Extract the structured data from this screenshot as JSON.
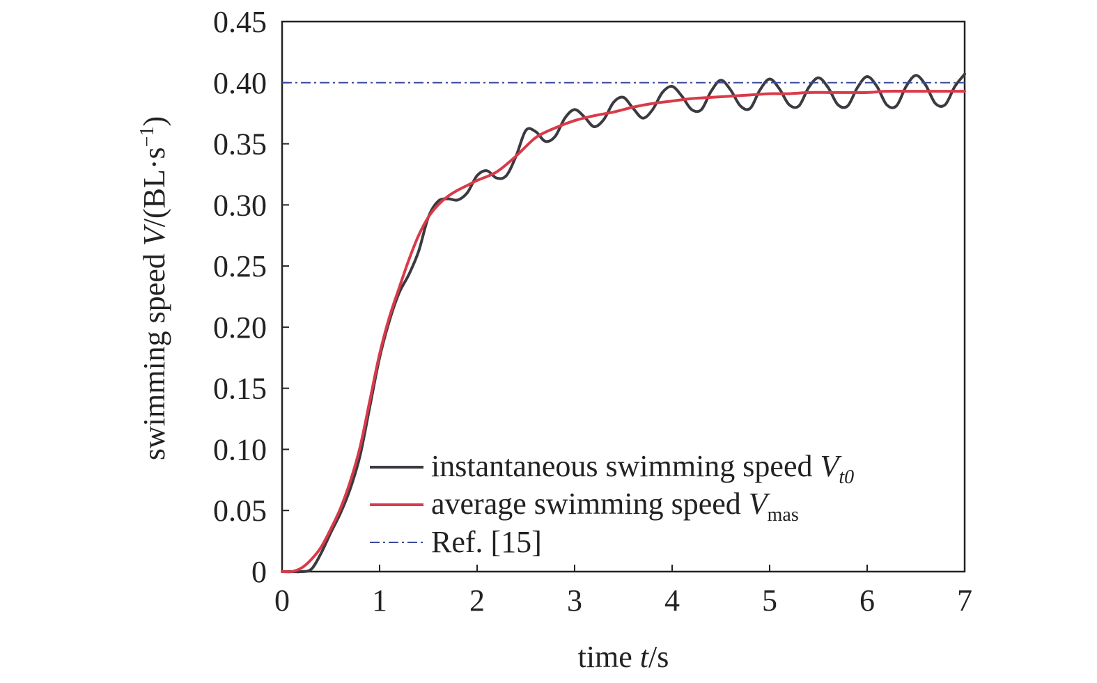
{
  "chart_data": {
    "type": "line",
    "xlabel": {
      "pre": "time ",
      "var": "t",
      "post": "/s"
    },
    "ylabel": {
      "pre": "swimming speed ",
      "var": "V",
      "post": "/(BL·s",
      "sup": "−1",
      "close": ")"
    },
    "xlim": [
      0,
      7
    ],
    "ylim": [
      0,
      0.45
    ],
    "xticks": [
      0,
      1,
      2,
      3,
      4,
      5,
      6,
      7
    ],
    "xtick_labels": [
      "0",
      "1",
      "2",
      "3",
      "4",
      "5",
      "6",
      "7"
    ],
    "yticks": [
      0,
      0.05,
      0.1,
      0.15,
      0.2,
      0.25,
      0.3,
      0.35,
      0.4,
      0.45
    ],
    "ytick_labels": [
      "0",
      "0.05",
      "0.10",
      "0.15",
      "0.20",
      "0.25",
      "0.30",
      "0.35",
      "0.40",
      "0.45"
    ],
    "grid": false,
    "legend_position": "bottom-right",
    "series": [
      {
        "legend_pre": "instantaneous swimming speed ",
        "legend_var": "V",
        "legend_sub": "t0",
        "color": "#3a3a40",
        "style": "solid",
        "x": [
          0.0,
          0.1,
          0.2,
          0.3,
          0.4,
          0.5,
          0.6,
          0.7,
          0.8,
          0.9,
          1.0,
          1.1,
          1.2,
          1.3,
          1.4,
          1.5,
          1.6,
          1.7,
          1.8,
          1.9,
          2.0,
          2.1,
          2.2,
          2.3,
          2.4,
          2.5,
          2.6,
          2.7,
          2.8,
          2.9,
          3.0,
          3.1,
          3.2,
          3.3,
          3.4,
          3.5,
          3.6,
          3.7,
          3.8,
          3.9,
          4.0,
          4.1,
          4.2,
          4.3,
          4.4,
          4.5,
          4.6,
          4.7,
          4.8,
          4.9,
          5.0,
          5.1,
          5.2,
          5.3,
          5.4,
          5.5,
          5.6,
          5.7,
          5.8,
          5.9,
          6.0,
          6.1,
          6.2,
          6.3,
          6.4,
          6.5,
          6.6,
          6.7,
          6.8,
          6.9,
          7.0
        ],
        "y": [
          0.0,
          0.0,
          0.0,
          0.002,
          0.015,
          0.032,
          0.048,
          0.068,
          0.095,
          0.135,
          0.175,
          0.205,
          0.228,
          0.243,
          0.262,
          0.29,
          0.303,
          0.305,
          0.304,
          0.31,
          0.324,
          0.328,
          0.322,
          0.324,
          0.34,
          0.361,
          0.36,
          0.352,
          0.356,
          0.371,
          0.378,
          0.372,
          0.364,
          0.37,
          0.384,
          0.388,
          0.379,
          0.371,
          0.378,
          0.392,
          0.397,
          0.389,
          0.378,
          0.378,
          0.393,
          0.402,
          0.394,
          0.381,
          0.379,
          0.394,
          0.403,
          0.395,
          0.382,
          0.381,
          0.396,
          0.404,
          0.396,
          0.382,
          0.381,
          0.396,
          0.405,
          0.397,
          0.382,
          0.381,
          0.397,
          0.406,
          0.398,
          0.383,
          0.382,
          0.397,
          0.407
        ]
      },
      {
        "legend_pre": "average swimming speed ",
        "legend_var": "V",
        "legend_sub": "mas",
        "color": "#d93a4a",
        "style": "solid",
        "x": [
          0.0,
          0.1,
          0.2,
          0.3,
          0.4,
          0.5,
          0.6,
          0.7,
          0.8,
          0.9,
          1.0,
          1.1,
          1.2,
          1.3,
          1.4,
          1.5,
          1.6,
          1.7,
          1.8,
          1.9,
          2.0,
          2.2,
          2.4,
          2.6,
          2.8,
          3.0,
          3.2,
          3.4,
          3.6,
          3.8,
          4.0,
          4.2,
          4.4,
          4.6,
          4.8,
          5.0,
          5.2,
          5.4,
          5.6,
          5.8,
          6.0,
          6.2,
          6.4,
          6.6,
          6.8,
          7.0
        ],
        "y": [
          0.0,
          0.0,
          0.003,
          0.01,
          0.02,
          0.035,
          0.052,
          0.074,
          0.102,
          0.14,
          0.178,
          0.208,
          0.232,
          0.255,
          0.275,
          0.29,
          0.3,
          0.307,
          0.312,
          0.316,
          0.32,
          0.327,
          0.34,
          0.355,
          0.363,
          0.369,
          0.373,
          0.376,
          0.38,
          0.383,
          0.385,
          0.387,
          0.388,
          0.389,
          0.39,
          0.391,
          0.391,
          0.392,
          0.392,
          0.392,
          0.392,
          0.393,
          0.393,
          0.393,
          0.393,
          0.393
        ]
      },
      {
        "legend_text": "Ref. [15]",
        "color": "#3b4a9c",
        "style": "dashdot",
        "x": [
          0,
          7
        ],
        "y": [
          0.4,
          0.4
        ]
      }
    ]
  }
}
